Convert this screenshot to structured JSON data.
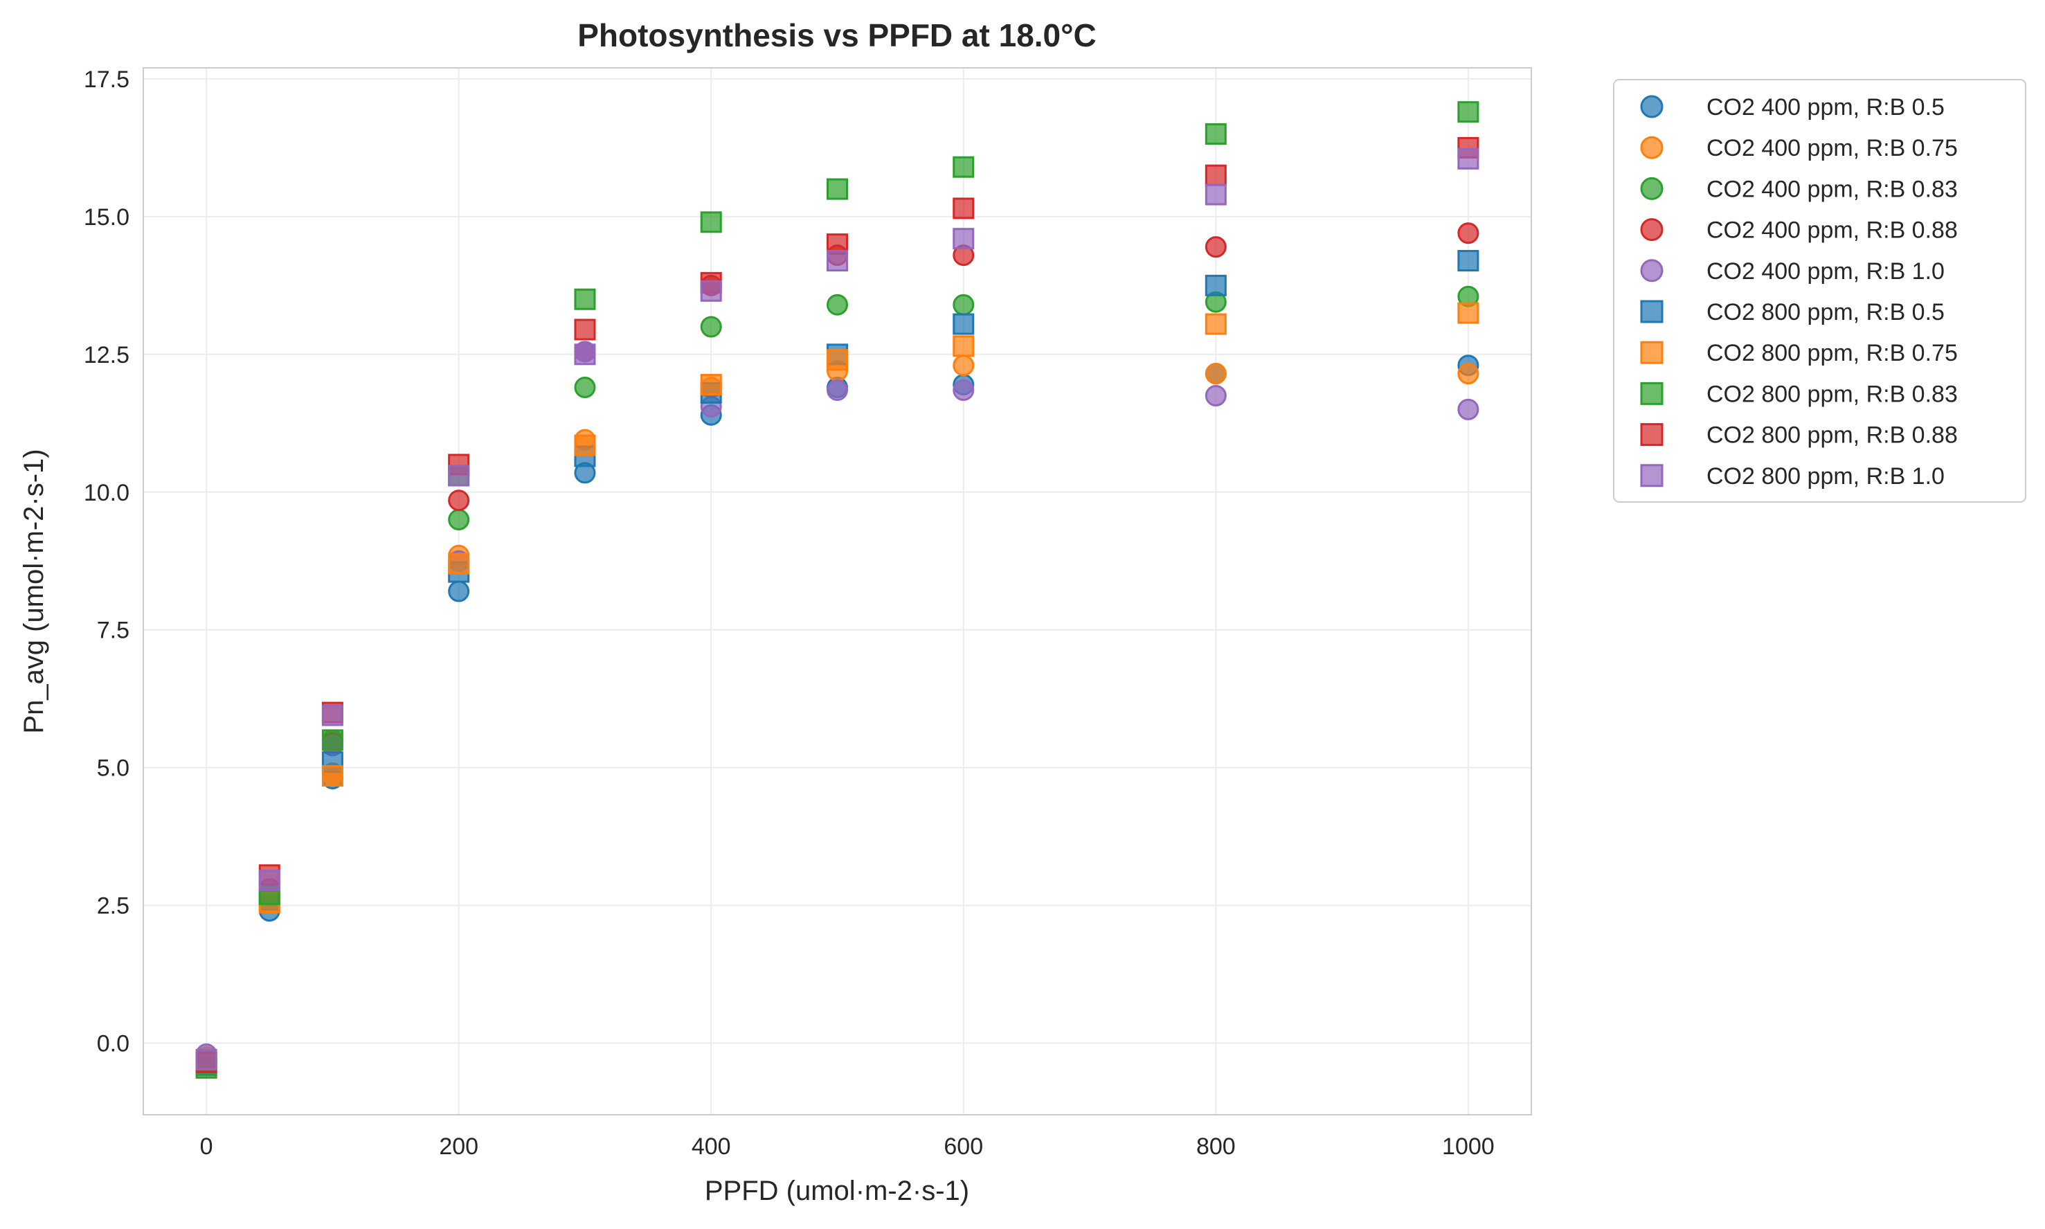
{
  "chart_data": {
    "type": "scatter",
    "title": "Photosynthesis vs PPFD at 18.0°C",
    "xlabel": "PPFD (umol·m-2·s-1)",
    "ylabel": "Pn_avg (umol·m-2·s-1)",
    "xlim": [
      -50,
      1050
    ],
    "ylim": [
      -1.3,
      17.7
    ],
    "xticks": [
      0,
      200,
      400,
      600,
      800,
      1000
    ],
    "xtick_labels": [
      "0",
      "200",
      "400",
      "600",
      "800",
      "1000"
    ],
    "yticks": [
      0.0,
      2.5,
      5.0,
      7.5,
      10.0,
      12.5,
      15.0,
      17.5
    ],
    "ytick_labels": [
      "0.0",
      "2.5",
      "5.0",
      "7.5",
      "10.0",
      "12.5",
      "15.0",
      "17.5"
    ],
    "grid": true,
    "legend_position": "outside-upper-right",
    "x": [
      0,
      50,
      100,
      200,
      300,
      400,
      500,
      600,
      800,
      1000
    ],
    "series": [
      {
        "name": "CO2 400 ppm, R:B 0.5",
        "marker": "circle",
        "color": "#1f77b4",
        "values": [
          -0.3,
          2.4,
          4.8,
          8.2,
          10.35,
          11.4,
          11.9,
          11.95,
          12.15,
          12.3
        ]
      },
      {
        "name": "CO2 400 ppm, R:B 0.75",
        "marker": "circle",
        "color": "#ff7f0e",
        "values": [
          -0.25,
          2.55,
          4.9,
          8.85,
          10.95,
          11.9,
          12.2,
          12.3,
          12.15,
          12.15
        ]
      },
      {
        "name": "CO2 400 ppm, R:B 0.83",
        "marker": "circle",
        "color": "#2ca02c",
        "values": [
          -0.3,
          2.65,
          5.5,
          9.5,
          11.9,
          13.0,
          13.4,
          13.4,
          13.45,
          13.55
        ]
      },
      {
        "name": "CO2 400 ppm, R:B 0.88",
        "marker": "circle",
        "color": "#d62728",
        "values": [
          -0.35,
          2.8,
          5.45,
          9.85,
          12.55,
          13.75,
          14.3,
          14.3,
          14.45,
          14.7
        ]
      },
      {
        "name": "CO2 400 ppm, R:B 1.0",
        "marker": "circle",
        "color": "#9467bd",
        "values": [
          -0.2,
          2.75,
          5.4,
          8.75,
          12.55,
          11.55,
          11.85,
          11.85,
          11.75,
          11.5
        ]
      },
      {
        "name": "CO2 800 ppm, R:B 0.5",
        "marker": "square",
        "color": "#1f77b4",
        "values": [
          -0.4,
          2.6,
          5.1,
          8.55,
          10.65,
          11.8,
          12.5,
          13.05,
          13.75,
          14.2
        ]
      },
      {
        "name": "CO2 800 ppm, R:B 0.75",
        "marker": "square",
        "color": "#ff7f0e",
        "values": [
          -0.35,
          2.55,
          4.85,
          8.7,
          10.85,
          11.95,
          12.4,
          12.65,
          13.05,
          13.25
        ]
      },
      {
        "name": "CO2 800 ppm, R:B 0.83",
        "marker": "square",
        "color": "#2ca02c",
        "values": [
          -0.45,
          2.7,
          5.5,
          10.3,
          13.5,
          14.9,
          15.5,
          15.9,
          16.5,
          16.9
        ]
      },
      {
        "name": "CO2 800 ppm, R:B 0.88",
        "marker": "square",
        "color": "#d62728",
        "values": [
          -0.35,
          3.05,
          6.0,
          10.5,
          12.95,
          13.8,
          14.5,
          15.15,
          15.75,
          16.25
        ]
      },
      {
        "name": "CO2 800 ppm, R:B 1.0",
        "marker": "square",
        "color": "#9467bd",
        "values": [
          -0.3,
          2.95,
          5.95,
          10.3,
          12.5,
          13.65,
          14.2,
          14.6,
          15.4,
          16.05
        ]
      }
    ]
  }
}
